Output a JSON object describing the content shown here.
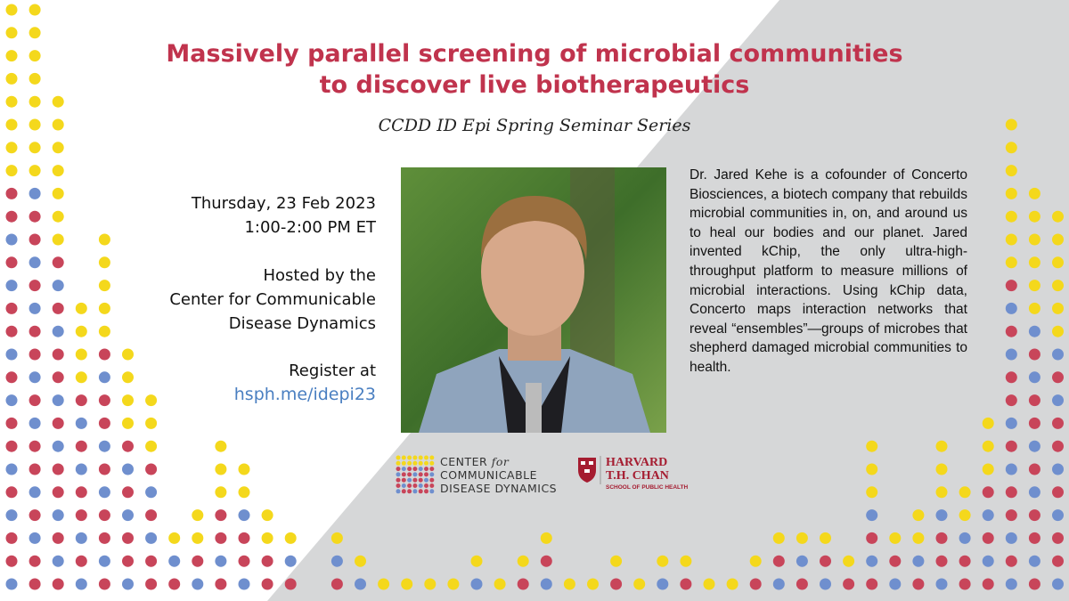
{
  "header": {
    "title_lines": [
      "Massively parallel screening of microbial communities",
      "to discover live biotherapeutics"
    ],
    "series": "CCDD ID Epi Spring Seminar Series"
  },
  "event": {
    "date": "Thursday, 23 Feb 2023",
    "time": "1:00-2:00 PM ET",
    "host_lines": [
      "Hosted by the",
      "Center for Communicable",
      "Disease Dynamics"
    ],
    "register": "Register at",
    "link": "hsph.me/idepi23"
  },
  "bio": "Dr. Jared Kehe is a cofounder of Concerto Biosciences, a biotech company that rebuilds microbial communities in, on, and around us to heal our bodies and our planet. Jared invented kChip, the only ultra-high-throughput platform to measure millions of microbial interactions. Using kChip data, Concerto maps interaction networks that reveal “ensembles”—groups of microbes that shepherd damaged microbial communities to health.",
  "logos": {
    "ccdd": [
      "CENTER",
      "for",
      "COMMUNICABLE",
      "DISEASE DYNAMICS"
    ],
    "harvard": [
      "HARVARD",
      "T.H. CHAN",
      "SCHOOL OF PUBLIC HEALTH"
    ]
  }
}
